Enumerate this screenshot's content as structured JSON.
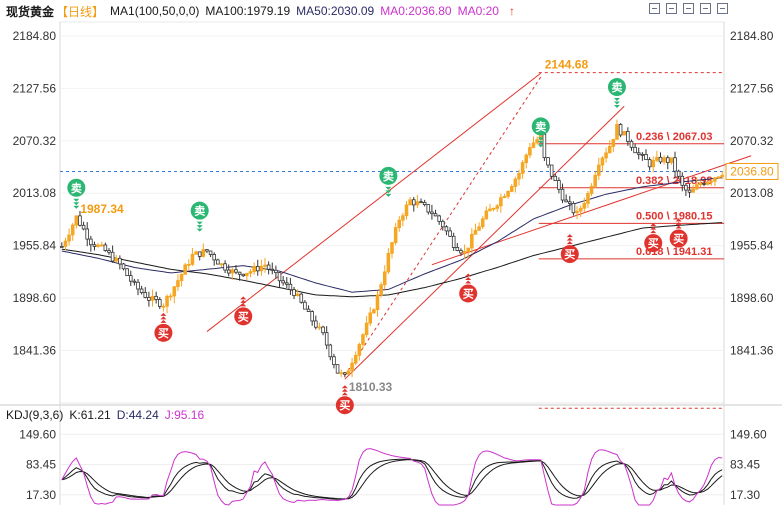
{
  "header": {
    "title": "现货黄金",
    "period": "【日线】",
    "ma_group_label": "MA1(100,50,0,0)",
    "ma100_label": "MA100:1979.19",
    "ma50_label": "MA50:2030.09",
    "ma0_label": "MA0:2036.80",
    "ma0b_label": "MA0:20",
    "arrow": "↑"
  },
  "kdj": {
    "label": "KDJ(9,3,6)",
    "k_label": "K:61.21",
    "d_label": "D:44.24",
    "j_label": "J:95.16"
  },
  "colors": {
    "up": "#f5a623",
    "down": "#333333",
    "ma100": "#1a1a1a",
    "ma50": "#2b2b66",
    "k": "#1a1a1a",
    "d": "#1a1a1a",
    "j": "#cc33cc",
    "fib": "#e0332e",
    "current": "#3a7bd5",
    "sell": "#2bb673",
    "buy": "#e0332e",
    "accent": "#f39c12"
  },
  "chart_data": {
    "type": "candlestick",
    "y_ticks": [
      "2184.80",
      "2127.56",
      "2070.32",
      "2013.08",
      "1955.84",
      "1898.60",
      "1841.36"
    ],
    "ylim": [
      1784,
      2200
    ],
    "current_price": "2036.80",
    "fib_levels": [
      {
        "ratio": "0.236",
        "value": 2067.03,
        "label": "0.236 \\ 2067.03"
      },
      {
        "ratio": "0.382",
        "value": 2018.98,
        "label": "0.382 \\ 2018.98"
      },
      {
        "ratio": "0.500",
        "value": 1980.15,
        "label": "0.500 \\ 1980.15"
      },
      {
        "ratio": "0.618",
        "value": 1941.31,
        "label": "0.618 \\ 1941.31"
      }
    ],
    "fib_top": 2144.68,
    "fib_bottom": 1810.33,
    "annotations": [
      {
        "text": "2144.68",
        "value": 2144.68,
        "bar": 132
      },
      {
        "text": "1810.33",
        "value": 1810.33,
        "bar": 78
      },
      {
        "text": "1987.34",
        "value": 1987.34,
        "bar": 4
      }
    ],
    "signals": [
      {
        "type": "sell",
        "label": "卖",
        "bar": 4,
        "value": 1995
      },
      {
        "type": "sell",
        "label": "卖",
        "bar": 38,
        "value": 1970
      },
      {
        "type": "sell",
        "label": "卖",
        "bar": 90,
        "value": 2008
      },
      {
        "type": "sell",
        "label": "卖",
        "bar": 132,
        "value": 2062
      },
      {
        "type": "sell",
        "label": "卖",
        "bar": 153,
        "value": 2105
      },
      {
        "type": "buy",
        "label": "买",
        "bar": 28,
        "value": 1889
      },
      {
        "type": "buy",
        "label": "买",
        "bar": 50,
        "value": 1907
      },
      {
        "type": "buy",
        "label": "买",
        "bar": 78,
        "value": 1810
      },
      {
        "type": "buy",
        "label": "买",
        "bar": 112,
        "value": 1932
      },
      {
        "type": "buy",
        "label": "买",
        "bar": 140,
        "value": 1975
      },
      {
        "type": "buy",
        "label": "买",
        "bar": 163,
        "value": 1987
      },
      {
        "type": "buy",
        "label": "买",
        "bar": 170,
        "value": 1992
      }
    ],
    "kdj_ticks": [
      "149.60",
      "83.45",
      "17.30"
    ],
    "kdj_ylim": [
      -5,
      172
    ],
    "price_path": [
      [
        0,
        1955
      ],
      [
        4,
        1987
      ],
      [
        8,
        1960
      ],
      [
        12,
        1950
      ],
      [
        16,
        1935
      ],
      [
        20,
        1912
      ],
      [
        24,
        1898
      ],
      [
        28,
        1892
      ],
      [
        32,
        1918
      ],
      [
        36,
        1945
      ],
      [
        40,
        1950
      ],
      [
        44,
        1935
      ],
      [
        48,
        1925
      ],
      [
        52,
        1928
      ],
      [
        56,
        1935
      ],
      [
        60,
        1918
      ],
      [
        64,
        1905
      ],
      [
        68,
        1880
      ],
      [
        72,
        1858
      ],
      [
        76,
        1818
      ],
      [
        78,
        1812
      ],
      [
        81,
        1840
      ],
      [
        84,
        1868
      ],
      [
        87,
        1900
      ],
      [
        90,
        1945
      ],
      [
        93,
        1985
      ],
      [
        96,
        2005
      ],
      [
        99,
        2000
      ],
      [
        102,
        1992
      ],
      [
        105,
        1978
      ],
      [
        108,
        1958
      ],
      [
        111,
        1948
      ],
      [
        114,
        1972
      ],
      [
        117,
        1990
      ],
      [
        120,
        2003
      ],
      [
        123,
        2018
      ],
      [
        126,
        2035
      ],
      [
        129,
        2065
      ],
      [
        132,
        2075
      ],
      [
        133,
        2050
      ],
      [
        136,
        2025
      ],
      [
        139,
        2002
      ],
      [
        142,
        1990
      ],
      [
        145,
        2012
      ],
      [
        148,
        2048
      ],
      [
        151,
        2065
      ],
      [
        153,
        2085
      ],
      [
        156,
        2072
      ],
      [
        159,
        2055
      ],
      [
        162,
        2045
      ],
      [
        165,
        2050
      ],
      [
        168,
        2048
      ],
      [
        171,
        2020
      ],
      [
        173,
        2012
      ],
      [
        176,
        2024
      ],
      [
        179,
        2029
      ],
      [
        182,
        2036
      ]
    ],
    "ma100_path": [
      [
        0,
        1952
      ],
      [
        10,
        1946
      ],
      [
        20,
        1938
      ],
      [
        30,
        1930
      ],
      [
        40,
        1925
      ],
      [
        50,
        1918
      ],
      [
        60,
        1910
      ],
      [
        70,
        1902
      ],
      [
        80,
        1900
      ],
      [
        90,
        1902
      ],
      [
        100,
        1910
      ],
      [
        110,
        1920
      ],
      [
        120,
        1932
      ],
      [
        130,
        1945
      ],
      [
        140,
        1955
      ],
      [
        150,
        1965
      ],
      [
        160,
        1975
      ],
      [
        170,
        1978
      ],
      [
        182,
        1981
      ]
    ],
    "ma50_path": [
      [
        0,
        1950
      ],
      [
        10,
        1942
      ],
      [
        20,
        1932
      ],
      [
        30,
        1926
      ],
      [
        40,
        1930
      ],
      [
        50,
        1934
      ],
      [
        60,
        1928
      ],
      [
        70,
        1915
      ],
      [
        80,
        1905
      ],
      [
        90,
        1908
      ],
      [
        100,
        1925
      ],
      [
        110,
        1940
      ],
      [
        120,
        1960
      ],
      [
        130,
        1985
      ],
      [
        140,
        2000
      ],
      [
        150,
        2012
      ],
      [
        160,
        2020
      ],
      [
        170,
        2025
      ],
      [
        182,
        2030
      ]
    ],
    "trend_lines": [
      {
        "from": [
          40,
          1862
        ],
        "to": [
          132,
          2144
        ],
        "style": "solid"
      },
      {
        "from": [
          78,
          1810
        ],
        "to": [
          155,
          2108
        ],
        "style": "solid"
      },
      {
        "from": [
          78,
          1814
        ],
        "to": [
          132,
          2140
        ],
        "style": "dashed"
      },
      {
        "from": [
          102,
          1935
        ],
        "to": [
          190,
          2054
        ],
        "style": "solid"
      }
    ]
  }
}
